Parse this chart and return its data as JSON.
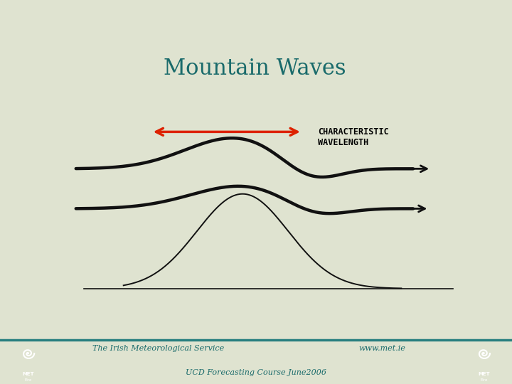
{
  "title": "Mountain Waves",
  "title_color": "#1a6b6b",
  "title_fontsize": 22,
  "bg_color": "#dfe3d0",
  "footer_text1": "The Irish Meteorological Service",
  "footer_text2": "www.met.ie",
  "footer_text3": "UCD Forecasting Course June2006",
  "footer_color": "#1a6b6b",
  "label_text": "CHARACTERISTIC\nWAVELENGTH",
  "arrow_color": "#dd2200",
  "wave_color": "#111111",
  "mountain_color": "#111111",
  "wave_lw": 3.2,
  "mountain_lw": 1.4,
  "footer_line_color": "#2a8080",
  "logo_color": "#2a8080"
}
